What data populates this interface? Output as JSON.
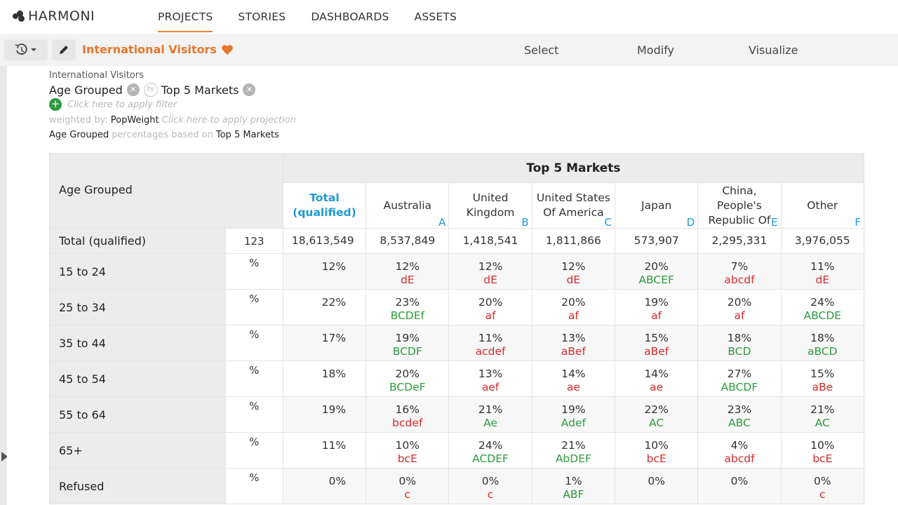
{
  "app": {
    "brand": "HARMONI"
  },
  "nav": {
    "items": [
      "PROJECTS",
      "STORIES",
      "DASHBOARDS",
      "ASSETS"
    ],
    "active": "PROJECTS"
  },
  "toolbar": {
    "title": "International Visitors",
    "modes": {
      "select": "Select",
      "modify": "Modify",
      "visualize": "Visualize"
    }
  },
  "meta": {
    "crumb": "International Visitors",
    "row_var": "Age Grouped",
    "by_label": "by",
    "col_var": "Top 5 Markets",
    "filter_hint": "Click here to apply filter",
    "weighted_prefix": "weighted by:",
    "weight_var": "PopWeight",
    "projection_hint": "Click here to apply projection",
    "pct_row_var": "Age Grouped",
    "pct_mid": "percentages based on",
    "pct_col_var": "Top 5 Markets"
  },
  "table": {
    "row_header": "Age Grouped",
    "banner": "Top 5 Markets",
    "columns": [
      {
        "label": "Total (qualified)",
        "letter": ""
      },
      {
        "label": "Australia",
        "letter": "A"
      },
      {
        "label": "United Kingdom",
        "letter": "B"
      },
      {
        "label": "United States Of America",
        "letter": "C"
      },
      {
        "label": "Japan",
        "letter": "D"
      },
      {
        "label": "China, People's Republic Of",
        "letter": "E"
      },
      {
        "label": "Other",
        "letter": "F"
      }
    ],
    "total_row": {
      "label": "Total (qualified)",
      "stat": "123",
      "values": [
        "18,613,549",
        "8,537,849",
        "1,418,541",
        "1,811,866",
        "573,907",
        "2,295,331",
        "3,976,055"
      ]
    },
    "rows": [
      {
        "label": "15 to 24",
        "stat": "%",
        "cells": [
          {
            "v": "12%",
            "s": "",
            "c": ""
          },
          {
            "v": "12%",
            "s": "dE",
            "c": "r"
          },
          {
            "v": "12%",
            "s": "dE",
            "c": "r"
          },
          {
            "v": "12%",
            "s": "dE",
            "c": "r"
          },
          {
            "v": "20%",
            "s": "ABCEF",
            "c": "g"
          },
          {
            "v": "7%",
            "s": "abcdf",
            "c": "r"
          },
          {
            "v": "11%",
            "s": "dE",
            "c": "r"
          }
        ]
      },
      {
        "label": "25 to 34",
        "stat": "%",
        "cells": [
          {
            "v": "22%",
            "s": "",
            "c": ""
          },
          {
            "v": "23%",
            "s": "BCDEf",
            "c": "g"
          },
          {
            "v": "20%",
            "s": "af",
            "c": "r"
          },
          {
            "v": "20%",
            "s": "af",
            "c": "r"
          },
          {
            "v": "19%",
            "s": "af",
            "c": "r"
          },
          {
            "v": "20%",
            "s": "af",
            "c": "r"
          },
          {
            "v": "24%",
            "s": "ABCDE",
            "c": "g"
          }
        ]
      },
      {
        "label": "35 to 44",
        "stat": "%",
        "cells": [
          {
            "v": "17%",
            "s": "",
            "c": ""
          },
          {
            "v": "19%",
            "s": "BCDF",
            "c": "g"
          },
          {
            "v": "11%",
            "s": "acdef",
            "c": "r"
          },
          {
            "v": "13%",
            "s": "aBef",
            "c": "r"
          },
          {
            "v": "15%",
            "s": "aBef",
            "c": "r"
          },
          {
            "v": "18%",
            "s": "BCD",
            "c": "g"
          },
          {
            "v": "18%",
            "s": "aBCD",
            "c": "g"
          }
        ]
      },
      {
        "label": "45 to 54",
        "stat": "%",
        "cells": [
          {
            "v": "18%",
            "s": "",
            "c": ""
          },
          {
            "v": "20%",
            "s": "BCDeF",
            "c": "g"
          },
          {
            "v": "13%",
            "s": "aef",
            "c": "r"
          },
          {
            "v": "14%",
            "s": "ae",
            "c": "r"
          },
          {
            "v": "14%",
            "s": "ae",
            "c": "r"
          },
          {
            "v": "27%",
            "s": "ABCDF",
            "c": "g"
          },
          {
            "v": "15%",
            "s": "aBe",
            "c": "r"
          }
        ]
      },
      {
        "label": "55 to 64",
        "stat": "%",
        "cells": [
          {
            "v": "19%",
            "s": "",
            "c": ""
          },
          {
            "v": "16%",
            "s": "bcdef",
            "c": "r"
          },
          {
            "v": "21%",
            "s": "Ae",
            "c": "g"
          },
          {
            "v": "19%",
            "s": "Adef",
            "c": "g"
          },
          {
            "v": "22%",
            "s": "AC",
            "c": "g"
          },
          {
            "v": "23%",
            "s": "ABC",
            "c": "g"
          },
          {
            "v": "21%",
            "s": "AC",
            "c": "g"
          }
        ]
      },
      {
        "label": "65+",
        "stat": "%",
        "cells": [
          {
            "v": "11%",
            "s": "",
            "c": ""
          },
          {
            "v": "10%",
            "s": "bcE",
            "c": "r"
          },
          {
            "v": "24%",
            "s": "ACDEF",
            "c": "g"
          },
          {
            "v": "21%",
            "s": "AbDEF",
            "c": "g"
          },
          {
            "v": "10%",
            "s": "bcE",
            "c": "r"
          },
          {
            "v": "4%",
            "s": "abcdf",
            "c": "r"
          },
          {
            "v": "10%",
            "s": "bcE",
            "c": "r"
          }
        ]
      },
      {
        "label": "Refused",
        "stat": "%",
        "cells": [
          {
            "v": "0%",
            "s": "",
            "c": ""
          },
          {
            "v": "0%",
            "s": "c",
            "c": "r"
          },
          {
            "v": "0%",
            "s": "c",
            "c": "r"
          },
          {
            "v": "1%",
            "s": "ABF",
            "c": "g"
          },
          {
            "v": "0%",
            "s": "",
            "c": ""
          },
          {
            "v": "0%",
            "s": "",
            "c": ""
          },
          {
            "v": "0%",
            "s": "c",
            "c": "r"
          }
        ]
      }
    ]
  },
  "colors": {
    "accent": "#e8762c",
    "link_blue": "#1e9ad6",
    "sig_green": "#2e9a3e",
    "sig_red": "#d62b2b"
  }
}
